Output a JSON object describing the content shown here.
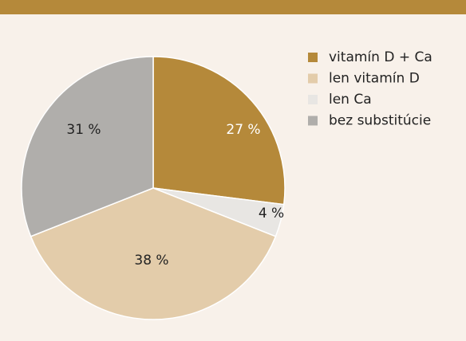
{
  "chart_data": {
    "type": "pie",
    "categories": [
      "vitamín D + Ca",
      "len vitamín D",
      "len Ca",
      "bez substitúcie"
    ],
    "values": [
      27,
      38,
      4,
      31
    ],
    "value_labels": [
      "27 %",
      "38 %",
      "4 %",
      "31 %"
    ],
    "colors": [
      "#b5893a",
      "#e3ccaa",
      "#e8e6e3",
      "#b0aeab"
    ],
    "legend": "right"
  }
}
